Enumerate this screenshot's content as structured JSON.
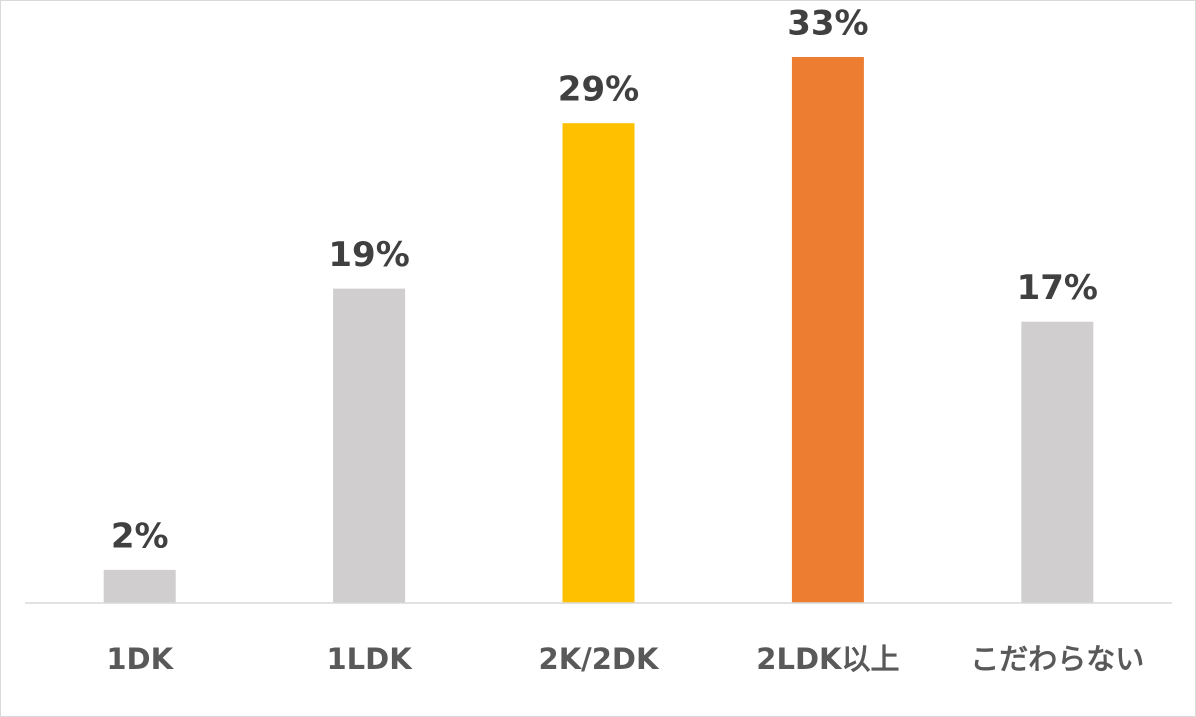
{
  "chart_data": {
    "type": "bar",
    "categories": [
      "1DK",
      "1LDK",
      "2K/2DK",
      "2LDK以上",
      "こだわらない"
    ],
    "values": [
      2,
      19,
      29,
      33,
      17
    ],
    "value_labels": [
      "2%",
      "19%",
      "29%",
      "33%",
      "17%"
    ],
    "colors": [
      "#d0cece",
      "#d0cece",
      "#ffc000",
      "#ed7d31",
      "#d0cece"
    ]
  }
}
